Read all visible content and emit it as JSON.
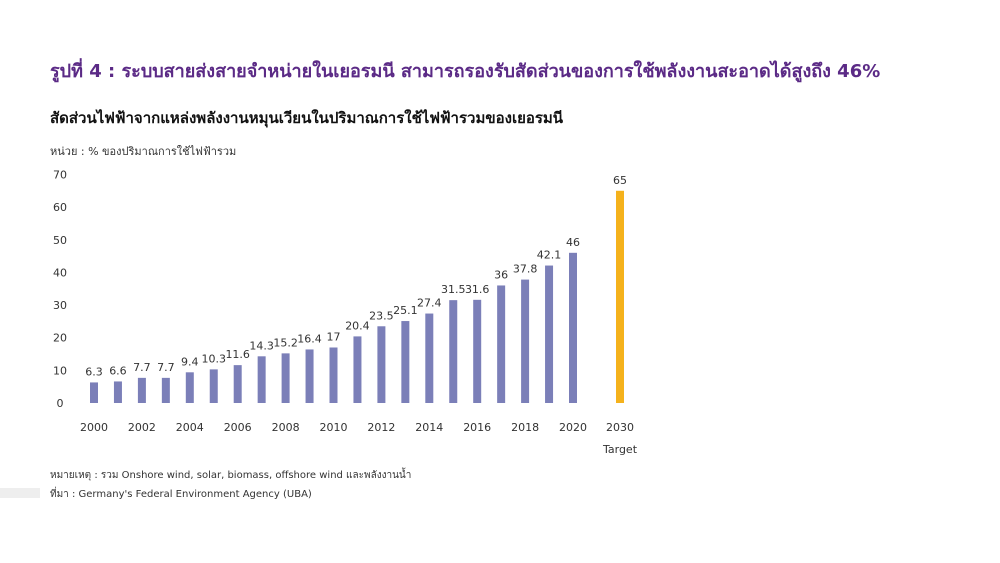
{
  "figure_title": "รูปที่ 4 : ระบบสายส่งสายจำหน่ายในเยอรมนี สามารถรองรับสัดส่วนของการใช้พลังงานสะอาดได้สูงถึง 46%",
  "chart_data": {
    "type": "bar",
    "title": "สัดส่วนไฟฟ้าจากแหล่งพลังงานหมุนเวียนในปริมาณการใช้ไฟฟ้ารวมของเยอรมนี",
    "unit_label": "หน่วย : % ของปริมาณการใช้ไฟฟ้ารวม",
    "categories": [
      "2000",
      "2001",
      "2002",
      "2003",
      "2004",
      "2005",
      "2006",
      "2007",
      "2008",
      "2009",
      "2010",
      "2011",
      "2012",
      "2013",
      "2014",
      "2015",
      "2016",
      "2017",
      "2018",
      "2019",
      "2020",
      "2030"
    ],
    "values": [
      6.3,
      6.6,
      7.7,
      7.7,
      9.4,
      10.3,
      11.6,
      14.3,
      15.2,
      16.4,
      17,
      20.4,
      23.5,
      25.1,
      27.4,
      31.5,
      31.6,
      36,
      37.8,
      42.1,
      46,
      65
    ],
    "data_labels": [
      "6.3",
      "6.6",
      "7.7",
      "7.7",
      "9.4",
      "10.3",
      "11.6",
      "14.3",
      "15.2",
      "16.4",
      "17",
      "20.4",
      "23.5",
      "25.1",
      "27.4",
      "31.5",
      "31.6",
      "36",
      "37.8",
      "42.1",
      "46",
      "65"
    ],
    "x_tick_labels": [
      "2000",
      "",
      "2002",
      "",
      "2004",
      "",
      "2006",
      "",
      "2008",
      "",
      "2010",
      "",
      "2012",
      "",
      "2014",
      "",
      "2016",
      "",
      "2018",
      "",
      "2020",
      "2030"
    ],
    "target_label": "Target",
    "target_category": "2030",
    "y_ticks": [
      0,
      10,
      20,
      30,
      40,
      50,
      60,
      70
    ],
    "ylim": [
      0,
      70
    ],
    "grid": false,
    "legend": "none",
    "colors": {
      "historical": "#7b7fb8",
      "target": "#f5b21c"
    }
  },
  "notes": {
    "remark": "หมายเหตุ : รวม Onshore wind, solar, biomass, offshore wind และพลังงานน้ำ",
    "source": "ที่มา :  Germany's Federal Environment Agency (UBA)"
  }
}
